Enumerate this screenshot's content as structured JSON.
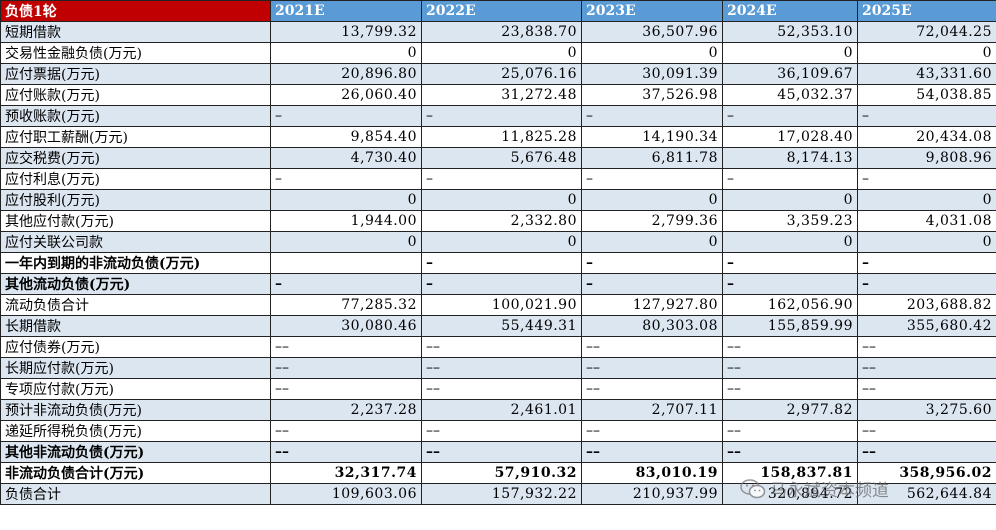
{
  "table": {
    "corner_label": "负债1轮",
    "columns": [
      "2021E",
      "2022E",
      "2023E",
      "2024E",
      "2025E"
    ],
    "rows": [
      {
        "label": "短期借款",
        "values": [
          "13,799.32",
          "23,838.70",
          "36,507.96",
          "52,353.10",
          "72,044.25"
        ]
      },
      {
        "label": "交易性金融负债(万元)",
        "values": [
          "0",
          "0",
          "0",
          "0",
          "0"
        ]
      },
      {
        "label": "应付票据(万元)",
        "values": [
          "20,896.80",
          "25,076.16",
          "30,091.39",
          "36,109.67",
          "43,331.60"
        ]
      },
      {
        "label": "应付账款(万元)",
        "values": [
          "26,060.40",
          "31,272.48",
          "37,526.98",
          "45,032.37",
          "54,038.85"
        ]
      },
      {
        "label": "预收账款(万元)",
        "values": [
          "–",
          "–",
          "–",
          "–",
          "–"
        ]
      },
      {
        "label": "应付职工薪酬(万元)",
        "values": [
          "9,854.40",
          "11,825.28",
          "14,190.34",
          "17,028.40",
          "20,434.08"
        ]
      },
      {
        "label": "应交税费(万元)",
        "values": [
          "4,730.40",
          "5,676.48",
          "6,811.78",
          "8,174.13",
          "9,808.96"
        ]
      },
      {
        "label": "应付利息(万元)",
        "values": [
          "–",
          "–",
          "–",
          "–",
          "–"
        ]
      },
      {
        "label": "应付股利(万元)",
        "values": [
          "0",
          "0",
          "0",
          "0",
          "0"
        ]
      },
      {
        "label": "其他应付款(万元)",
        "values": [
          "1,944.00",
          "2,332.80",
          "2,799.36",
          "3,359.23",
          "4,031.08"
        ]
      },
      {
        "label": "应付关联公司款",
        "values": [
          "0",
          "0",
          "0",
          "0",
          "0"
        ]
      },
      {
        "label": "一年内到期的非流动负债(万元)",
        "values": [
          "",
          "–",
          "–",
          "–",
          "–"
        ]
      },
      {
        "label": "其他流动负债(万元)",
        "values": [
          "–",
          "–",
          "–",
          "–",
          "–"
        ]
      },
      {
        "label": "流动负债合计",
        "values": [
          "77,285.32",
          "100,021.90",
          "127,927.80",
          "162,056.90",
          "203,688.82"
        ]
      },
      {
        "label": "长期借款",
        "values": [
          "30,080.46",
          "55,449.31",
          "80,303.08",
          "155,859.99",
          "355,680.42"
        ]
      },
      {
        "label": "应付债券(万元)",
        "values": [
          "––",
          "––",
          "––",
          "––",
          "––"
        ]
      },
      {
        "label": "长期应付款(万元)",
        "values": [
          "––",
          "––",
          "––",
          "––",
          "––"
        ]
      },
      {
        "label": "专项应付款(万元)",
        "values": [
          "––",
          "––",
          "––",
          "––",
          "––"
        ]
      },
      {
        "label": "预计非流动负债(万元)",
        "values": [
          "2,237.28",
          "2,461.01",
          "2,707.11",
          "2,977.82",
          "3,275.60"
        ]
      },
      {
        "label": "递延所得税负债(万元)",
        "values": [
          "––",
          "––",
          "––",
          "––",
          "––"
        ]
      },
      {
        "label": "其他非流动负债(万元)",
        "values": [
          "––",
          "––",
          "––",
          "––",
          "––"
        ]
      },
      {
        "label": "非流动负债合计(万元)",
        "values": [
          "32,317.74",
          "57,910.32",
          "83,010.19",
          "158,837.81",
          "358,956.02"
        ]
      },
      {
        "label": "负债合计",
        "values": [
          "109,603.06",
          "157,932.22",
          "210,937.99",
          "320,894.72",
          "562,644.84"
        ]
      }
    ]
  },
  "watermark": {
    "text": "马永斌资本频道",
    "icon": "wechat-icon"
  },
  "colors": {
    "header_blue": "#5b9bd5",
    "corner_red": "#c00000",
    "row_shade": "#dce6f1"
  }
}
